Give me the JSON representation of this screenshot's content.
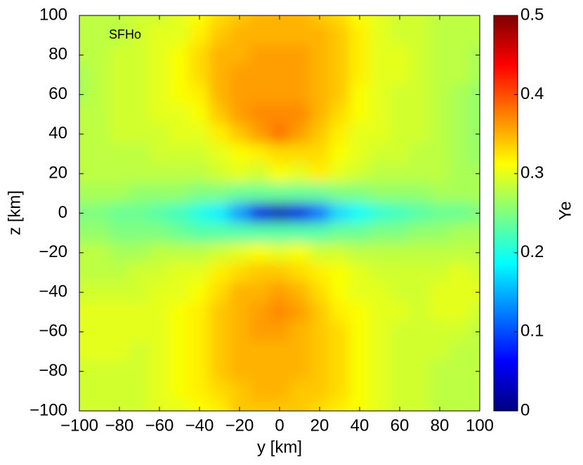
{
  "chart_data": {
    "type": "heatmap",
    "annotation": "SFHo",
    "xlabel": "y [km]",
    "ylabel": "z [km]",
    "colorbar_label": "Ye",
    "colormap": "jet",
    "x": [
      -100,
      -90,
      -80,
      -70,
      -60,
      -50,
      -40,
      -30,
      -20,
      -10,
      0,
      10,
      20,
      30,
      40,
      50,
      60,
      70,
      80,
      90,
      100
    ],
    "y": [
      100,
      90,
      80,
      70,
      60,
      50,
      40,
      30,
      20,
      10,
      0,
      -10,
      -20,
      -30,
      -40,
      -50,
      -60,
      -70,
      -80,
      -90,
      -100
    ],
    "values": [
      [
        0.28,
        0.28,
        0.28,
        0.29,
        0.29,
        0.3,
        0.31,
        0.33,
        0.34,
        0.35,
        0.35,
        0.35,
        0.34,
        0.33,
        0.31,
        0.3,
        0.29,
        0.29,
        0.28,
        0.28,
        0.28
      ],
      [
        0.28,
        0.28,
        0.28,
        0.29,
        0.3,
        0.3,
        0.32,
        0.34,
        0.35,
        0.35,
        0.35,
        0.35,
        0.35,
        0.34,
        0.32,
        0.3,
        0.29,
        0.29,
        0.28,
        0.28,
        0.28
      ],
      [
        0.28,
        0.28,
        0.29,
        0.29,
        0.3,
        0.31,
        0.33,
        0.35,
        0.35,
        0.36,
        0.36,
        0.36,
        0.35,
        0.34,
        0.32,
        0.3,
        0.3,
        0.29,
        0.28,
        0.28,
        0.27
      ],
      [
        0.27,
        0.28,
        0.29,
        0.29,
        0.3,
        0.31,
        0.33,
        0.35,
        0.36,
        0.36,
        0.36,
        0.36,
        0.35,
        0.34,
        0.32,
        0.3,
        0.3,
        0.29,
        0.28,
        0.28,
        0.27
      ],
      [
        0.27,
        0.28,
        0.29,
        0.29,
        0.3,
        0.31,
        0.32,
        0.35,
        0.36,
        0.36,
        0.36,
        0.36,
        0.35,
        0.34,
        0.31,
        0.3,
        0.29,
        0.29,
        0.28,
        0.27,
        0.26
      ],
      [
        0.28,
        0.28,
        0.29,
        0.29,
        0.3,
        0.3,
        0.31,
        0.34,
        0.36,
        0.37,
        0.37,
        0.37,
        0.35,
        0.33,
        0.31,
        0.3,
        0.29,
        0.29,
        0.28,
        0.27,
        0.26
      ],
      [
        0.28,
        0.28,
        0.29,
        0.29,
        0.29,
        0.3,
        0.3,
        0.32,
        0.34,
        0.36,
        0.38,
        0.36,
        0.34,
        0.32,
        0.3,
        0.3,
        0.29,
        0.29,
        0.28,
        0.27,
        0.26
      ],
      [
        0.28,
        0.28,
        0.28,
        0.28,
        0.29,
        0.29,
        0.29,
        0.3,
        0.31,
        0.32,
        0.33,
        0.33,
        0.33,
        0.31,
        0.3,
        0.29,
        0.29,
        0.28,
        0.28,
        0.27,
        0.26
      ],
      [
        0.28,
        0.28,
        0.28,
        0.28,
        0.28,
        0.28,
        0.28,
        0.29,
        0.3,
        0.29,
        0.31,
        0.3,
        0.32,
        0.3,
        0.29,
        0.28,
        0.28,
        0.28,
        0.28,
        0.27,
        0.27
      ],
      [
        0.27,
        0.27,
        0.27,
        0.26,
        0.26,
        0.26,
        0.25,
        0.25,
        0.24,
        0.24,
        0.24,
        0.24,
        0.24,
        0.25,
        0.25,
        0.26,
        0.26,
        0.26,
        0.27,
        0.27,
        0.27
      ],
      [
        0.25,
        0.25,
        0.24,
        0.24,
        0.23,
        0.22,
        0.2,
        0.18,
        0.14,
        0.05,
        0.03,
        0.05,
        0.12,
        0.17,
        0.19,
        0.21,
        0.22,
        0.23,
        0.24,
        0.24,
        0.25
      ],
      [
        0.26,
        0.26,
        0.25,
        0.25,
        0.25,
        0.24,
        0.23,
        0.23,
        0.23,
        0.23,
        0.23,
        0.23,
        0.23,
        0.24,
        0.24,
        0.25,
        0.25,
        0.26,
        0.26,
        0.27,
        0.27
      ],
      [
        0.28,
        0.28,
        0.27,
        0.27,
        0.28,
        0.28,
        0.28,
        0.29,
        0.3,
        0.31,
        0.3,
        0.31,
        0.29,
        0.29,
        0.28,
        0.28,
        0.28,
        0.28,
        0.28,
        0.28,
        0.28
      ],
      [
        0.28,
        0.28,
        0.28,
        0.29,
        0.29,
        0.3,
        0.3,
        0.32,
        0.33,
        0.34,
        0.34,
        0.33,
        0.32,
        0.31,
        0.3,
        0.29,
        0.29,
        0.29,
        0.29,
        0.3,
        0.29
      ],
      [
        0.29,
        0.29,
        0.29,
        0.29,
        0.3,
        0.3,
        0.31,
        0.33,
        0.35,
        0.35,
        0.36,
        0.35,
        0.33,
        0.31,
        0.3,
        0.3,
        0.29,
        0.29,
        0.3,
        0.3,
        0.3
      ],
      [
        0.3,
        0.3,
        0.3,
        0.3,
        0.3,
        0.31,
        0.32,
        0.34,
        0.35,
        0.36,
        0.37,
        0.36,
        0.34,
        0.32,
        0.31,
        0.3,
        0.3,
        0.29,
        0.3,
        0.3,
        0.29
      ],
      [
        0.3,
        0.3,
        0.3,
        0.3,
        0.3,
        0.31,
        0.32,
        0.34,
        0.35,
        0.36,
        0.36,
        0.35,
        0.34,
        0.33,
        0.31,
        0.3,
        0.29,
        0.29,
        0.29,
        0.29,
        0.28
      ],
      [
        0.3,
        0.3,
        0.3,
        0.29,
        0.3,
        0.31,
        0.32,
        0.34,
        0.35,
        0.35,
        0.35,
        0.35,
        0.34,
        0.33,
        0.31,
        0.3,
        0.29,
        0.29,
        0.29,
        0.28,
        0.28
      ],
      [
        0.29,
        0.29,
        0.29,
        0.29,
        0.3,
        0.31,
        0.32,
        0.34,
        0.35,
        0.35,
        0.35,
        0.35,
        0.34,
        0.33,
        0.31,
        0.3,
        0.29,
        0.29,
        0.28,
        0.28,
        0.28
      ],
      [
        0.29,
        0.29,
        0.29,
        0.29,
        0.3,
        0.31,
        0.32,
        0.33,
        0.34,
        0.35,
        0.35,
        0.34,
        0.34,
        0.33,
        0.31,
        0.3,
        0.29,
        0.29,
        0.28,
        0.28,
        0.28
      ],
      [
        0.29,
        0.29,
        0.29,
        0.29,
        0.3,
        0.3,
        0.31,
        0.32,
        0.34,
        0.34,
        0.34,
        0.34,
        0.33,
        0.32,
        0.31,
        0.3,
        0.29,
        0.29,
        0.28,
        0.28,
        0.28
      ]
    ],
    "xlim": [
      -100,
      100
    ],
    "ylim": [
      -100,
      100
    ],
    "xticks": [
      {
        "value": -100,
        "label": "−100"
      },
      {
        "value": -80,
        "label": "−80"
      },
      {
        "value": -60,
        "label": "−60"
      },
      {
        "value": -40,
        "label": "−40"
      },
      {
        "value": -20,
        "label": "−20"
      },
      0,
      20,
      40,
      60,
      80,
      100
    ],
    "yticks": [
      {
        "value": -100,
        "label": "−100"
      },
      {
        "value": -80,
        "label": "−80"
      },
      {
        "value": -60,
        "label": "−60"
      },
      {
        "value": -40,
        "label": "−40"
      },
      {
        "value": -20,
        "label": "−20"
      },
      0,
      20,
      40,
      60,
      80,
      100
    ],
    "zlim": [
      0,
      0.5
    ],
    "zticks": [
      0,
      0.1,
      0.2,
      0.3,
      0.4,
      0.5
    ]
  }
}
